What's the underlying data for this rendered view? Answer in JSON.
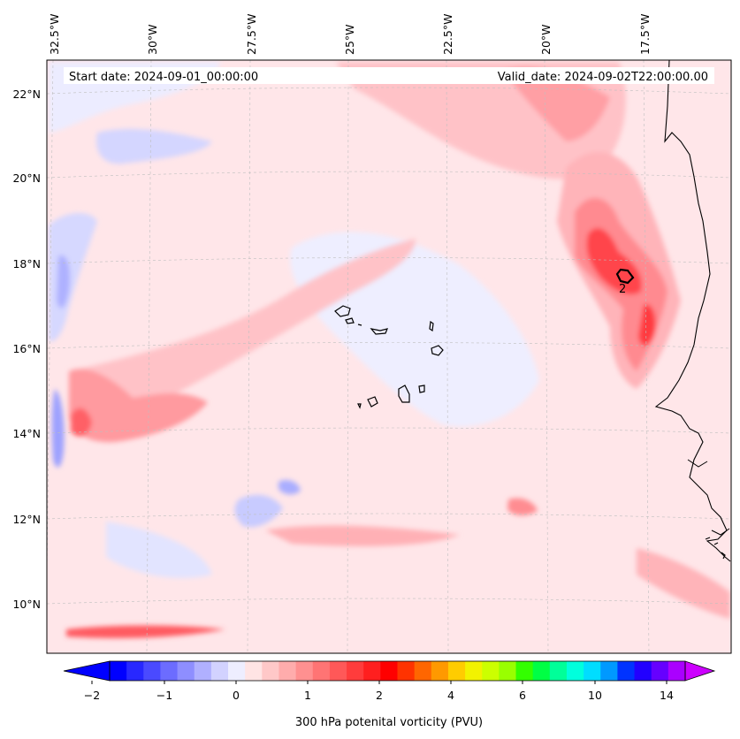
{
  "map": {
    "title_left": "Start date: 2024-09-01_00:00:00",
    "title_right": "Valid_date: 2024-09-02T22:00:00.00",
    "lon_labels": [
      "32.5°W",
      "30°W",
      "27.5°W",
      "25°W",
      "22.5°W",
      "20°W",
      "17.5°W"
    ],
    "lat_labels": [
      "22°N",
      "20°N",
      "18°N",
      "16°N",
      "14°N",
      "12°N",
      "10°N"
    ],
    "contour_label": "2",
    "colors": {
      "frame": "#000000",
      "grid": "#bfbfbf",
      "land_outline": "#000000",
      "pale_pink": "#ffe6e9",
      "pink": "#ffc2c7",
      "light_red": "#ff9a9f",
      "red": "#ff6066",
      "deep_red": "#ff2a2f",
      "pale_blue": "#ececff",
      "light_blue": "#cfd2ff",
      "blue": "#8a8eff"
    }
  },
  "colorbar": {
    "label": "300 hPa potenital vorticity (PVU)",
    "tick_labels": [
      "−2",
      "−1",
      "0",
      "1",
      "2",
      "4",
      "6",
      "10",
      "14"
    ],
    "colors": [
      "#0000ff",
      "#2828ff",
      "#4a4aff",
      "#6c6cff",
      "#8e8eff",
      "#b0b0ff",
      "#d2d2ff",
      "#eeeeff",
      "#ffe4e4",
      "#ffc8c8",
      "#ffacac",
      "#ff9090",
      "#ff7474",
      "#ff5858",
      "#ff3c3c",
      "#ff1f1f",
      "#ff0000",
      "#ff3300",
      "#ff6600",
      "#ff9900",
      "#ffcc00",
      "#f2f200",
      "#ccff00",
      "#99ff00",
      "#33ff00",
      "#00ff44",
      "#00ff99",
      "#00ffdd",
      "#00ddff",
      "#0099ff",
      "#0033ff",
      "#2200ff",
      "#6600ff",
      "#aa00ff"
    ]
  }
}
